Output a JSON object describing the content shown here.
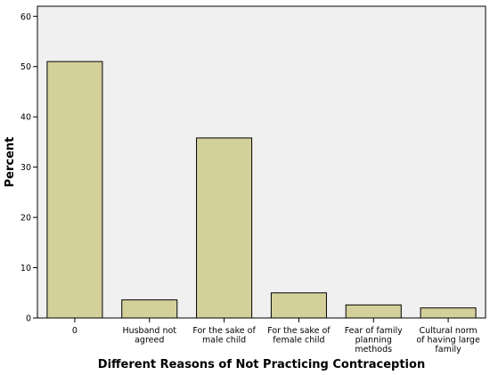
{
  "chart_data": {
    "type": "bar",
    "title": "",
    "xlabel": "Different Reasons of Not Practicing Contraception",
    "ylabel": "Percent",
    "ylim": [
      0,
      62
    ],
    "yticks": [
      0,
      10,
      20,
      30,
      40,
      50,
      60
    ],
    "grid": false,
    "categories": [
      [
        "0"
      ],
      [
        "Husband not",
        "agreed"
      ],
      [
        "For the sake of",
        "male child"
      ],
      [
        "For the sake of",
        "female child"
      ],
      [
        "Fear of family",
        "planning",
        "methods"
      ],
      [
        "Cultural norm",
        "of having large",
        "family"
      ]
    ],
    "values": [
      51.0,
      3.6,
      35.8,
      5.0,
      2.6,
      2.0
    ],
    "colors": {
      "plot_background": "#f0f0f0",
      "bar_fill": "#d4d09a",
      "bar_stroke": "#000000",
      "axis": "#000000"
    }
  }
}
